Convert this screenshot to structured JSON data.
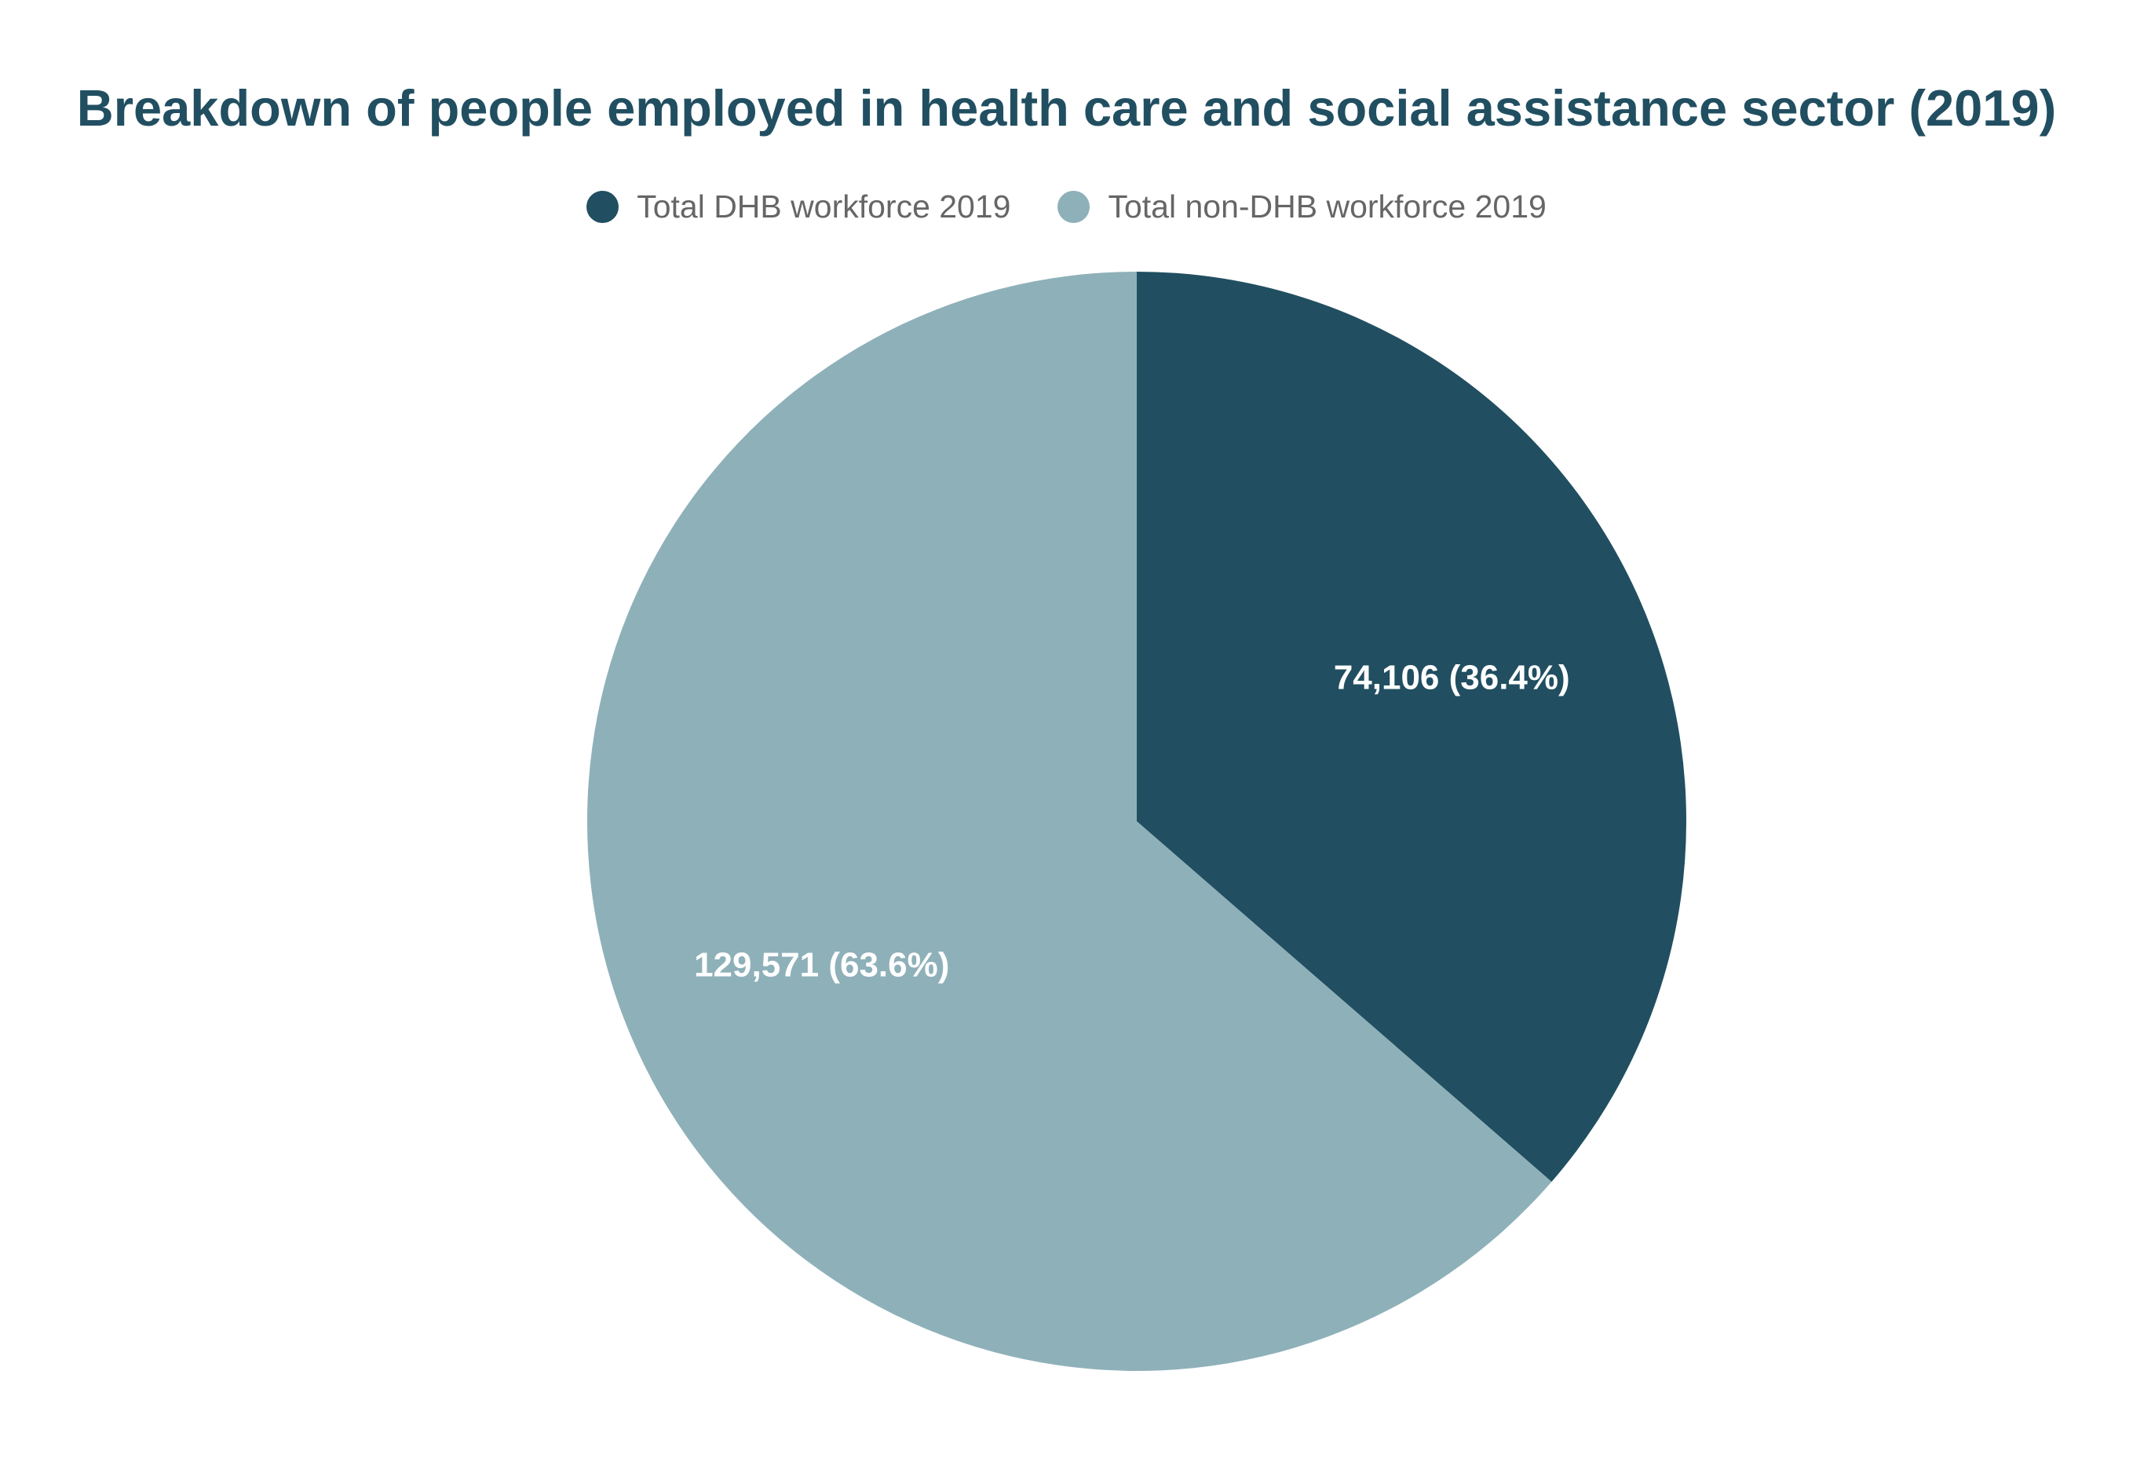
{
  "chart_data": {
    "type": "pie",
    "title": "Breakdown of people employed in health care and social assistance sector (2019)",
    "legend_position": "top",
    "slices": [
      {
        "name": "Total DHB workforce 2019",
        "value": 74106,
        "label": "74,106 (36.4%)",
        "color": "#214f61"
      },
      {
        "name": "Total non-DHB workforce 2019",
        "value": 129571,
        "label": "129,571 (63.6%)",
        "color": "#8eb0b9"
      }
    ]
  }
}
